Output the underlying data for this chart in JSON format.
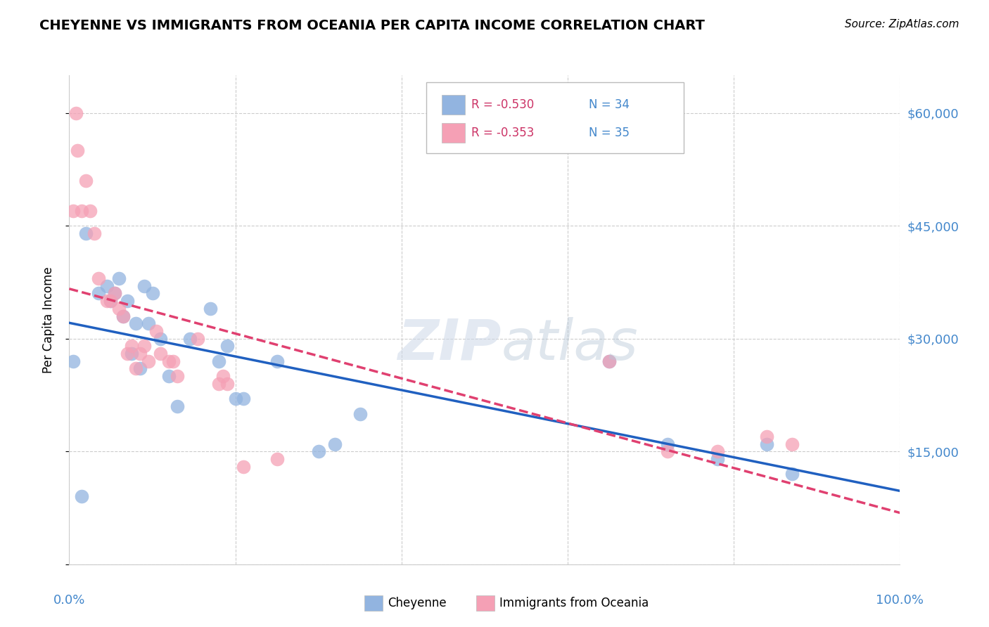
{
  "title": "CHEYENNE VS IMMIGRANTS FROM OCEANIA PER CAPITA INCOME CORRELATION CHART",
  "source": "Source: ZipAtlas.com",
  "ylabel": "Per Capita Income",
  "watermark_zip": "ZIP",
  "watermark_atlas": "atlas",
  "legend_r1": "R = -0.530",
  "legend_n1": "N = 34",
  "legend_r2": "R = -0.353",
  "legend_n2": "N = 35",
  "ytick_vals": [
    0,
    15000,
    30000,
    45000,
    60000
  ],
  "ytick_labels": [
    "",
    "$15,000",
    "$30,000",
    "$45,000",
    "$60,000"
  ],
  "cheyenne_color": "#92b4e0",
  "oceania_color": "#f5a0b5",
  "cheyenne_line_color": "#2060c0",
  "oceania_line_color": "#e04070",
  "grid_color": "#cccccc",
  "axis_label_color": "#4488cc",
  "cheyenne_x": [
    0.5,
    1.5,
    2.0,
    3.5,
    4.5,
    5.0,
    5.5,
    6.0,
    6.5,
    7.0,
    7.5,
    8.0,
    8.5,
    9.0,
    9.5,
    10.0,
    11.0,
    12.0,
    13.0,
    14.5,
    17.0,
    18.0,
    19.0,
    20.0,
    21.0,
    25.0,
    30.0,
    32.0,
    35.0,
    65.0,
    72.0,
    78.0,
    84.0,
    87.0
  ],
  "cheyenne_y": [
    27000,
    9000,
    44000,
    36000,
    37000,
    35000,
    36000,
    38000,
    33000,
    35000,
    28000,
    32000,
    26000,
    37000,
    32000,
    36000,
    30000,
    25000,
    21000,
    30000,
    34000,
    27000,
    29000,
    22000,
    22000,
    27000,
    15000,
    16000,
    20000,
    27000,
    16000,
    14000,
    16000,
    12000
  ],
  "oceania_x": [
    0.5,
    0.8,
    1.0,
    1.5,
    2.0,
    2.5,
    3.0,
    3.5,
    4.5,
    5.0,
    5.5,
    6.0,
    6.5,
    7.0,
    7.5,
    8.0,
    8.5,
    9.0,
    9.5,
    10.5,
    11.0,
    12.0,
    12.5,
    13.0,
    15.5,
    18.0,
    18.5,
    19.0,
    21.0,
    25.0,
    65.0,
    72.0,
    78.0,
    84.0,
    87.0
  ],
  "oceania_y": [
    47000,
    60000,
    55000,
    47000,
    51000,
    47000,
    44000,
    38000,
    35000,
    35000,
    36000,
    34000,
    33000,
    28000,
    29000,
    26000,
    28000,
    29000,
    27000,
    31000,
    28000,
    27000,
    27000,
    25000,
    30000,
    24000,
    25000,
    24000,
    13000,
    14000,
    27000,
    15000,
    15000,
    17000,
    16000
  ]
}
